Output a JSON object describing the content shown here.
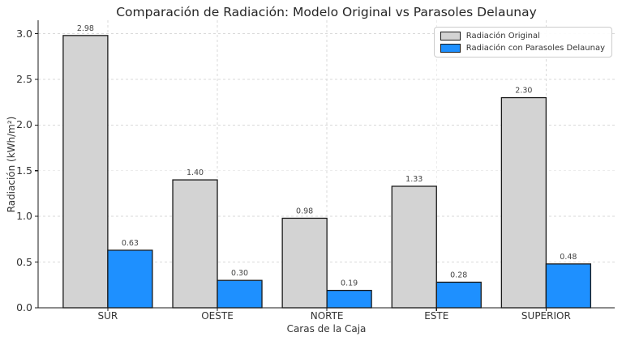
{
  "chart_data": {
    "type": "bar",
    "title": "Comparación de Radiación: Modelo Original vs Parasoles Delaunay",
    "xlabel": "Caras de la Caja",
    "ylabel": "Radiación (kWh/m²)",
    "categories": [
      "SUR",
      "OESTE",
      "NORTE",
      "ESTE",
      "SUPERIOR"
    ],
    "series": [
      {
        "name": "Radiación Original",
        "color": "#d3d3d3",
        "values": [
          2.98,
          1.4,
          0.98,
          1.33,
          2.3
        ]
      },
      {
        "name": "Radiación con Parasoles Delaunay",
        "color": "#1e90ff",
        "values": [
          0.63,
          0.3,
          0.19,
          0.28,
          0.48
        ]
      }
    ],
    "value_labels": [
      "2.98",
      "1.40",
      "0.98",
      "1.33",
      "2.30",
      "0.63",
      "0.30",
      "0.19",
      "0.28",
      "0.48"
    ],
    "ylim": [
      0,
      3.147
    ],
    "yticks": [
      0.0,
      0.5,
      1.0,
      1.5,
      2.0,
      2.5,
      3.0
    ],
    "ytick_labels": [
      "0.0",
      "0.5",
      "1.0",
      "1.5",
      "2.0",
      "2.5",
      "3.0"
    ],
    "grid": "dashed-both",
    "legend_position": "upper right",
    "bar_edge_color": "#1a1a1a",
    "grid_color": "#d9d9d9",
    "text_color": "#333333",
    "value_label_color": "#444444"
  }
}
